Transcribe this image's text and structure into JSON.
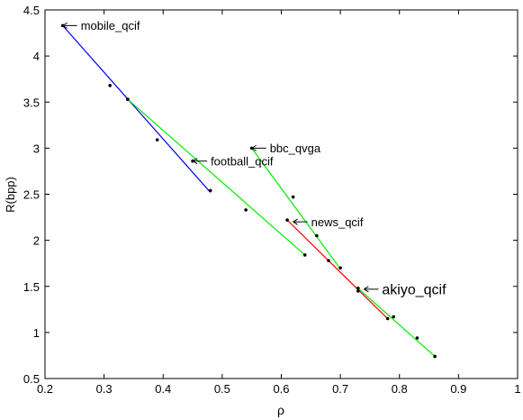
{
  "chart_data": {
    "type": "scatter",
    "title": "",
    "xlabel": "ρ",
    "ylabel": "R(bpp)",
    "xlim": [
      0.2,
      1
    ],
    "ylim": [
      0.5,
      4.5
    ],
    "xticks": [
      0.2,
      0.3,
      0.4,
      0.5,
      0.6,
      0.7,
      0.8,
      0.9,
      1
    ],
    "yticks": [
      0.5,
      1,
      1.5,
      2,
      2.5,
      3,
      3.5,
      4,
      4.5
    ],
    "xtick_labels": [
      "0.2",
      "0.3",
      "0.4",
      "0.5",
      "0.6",
      "0.7",
      "0.8",
      "0.9",
      "1"
    ],
    "ytick_labels": [
      "0.5",
      "1",
      "1.5",
      "2",
      "2.5",
      "3",
      "3.5",
      "4",
      "4.5"
    ],
    "grid": false,
    "series": [
      {
        "color": "#0000ff",
        "points": [
          [
            0.23,
            4.33
          ],
          [
            0.31,
            3.68
          ],
          [
            0.34,
            3.53
          ],
          [
            0.39,
            3.09
          ],
          [
            0.48,
            2.54
          ]
        ],
        "line": [
          [
            0.23,
            4.33
          ],
          [
            0.48,
            2.52
          ]
        ]
      },
      {
        "color": "#00ee00",
        "points": [
          [
            0.34,
            3.53
          ],
          [
            0.45,
            2.86
          ],
          [
            0.54,
            2.33
          ],
          [
            0.64,
            1.84
          ]
        ],
        "line": [
          [
            0.34,
            3.53
          ],
          [
            0.64,
            1.84
          ]
        ]
      },
      {
        "color": "#00ee00",
        "points": [
          [
            0.55,
            3.0
          ],
          [
            0.62,
            2.47
          ],
          [
            0.66,
            2.05
          ],
          [
            0.7,
            1.7
          ]
        ],
        "line": [
          [
            0.55,
            3.0
          ],
          [
            0.7,
            1.69
          ]
        ]
      },
      {
        "color": "#ff0000",
        "points": [
          [
            0.61,
            2.22
          ],
          [
            0.68,
            1.78
          ],
          [
            0.73,
            1.45
          ],
          [
            0.78,
            1.15
          ]
        ],
        "line": [
          [
            0.61,
            2.22
          ],
          [
            0.78,
            1.15
          ]
        ]
      },
      {
        "color": "#00ee00",
        "points": [
          [
            0.73,
            1.48
          ],
          [
            0.79,
            1.17
          ],
          [
            0.83,
            0.94
          ],
          [
            0.86,
            0.74
          ]
        ],
        "line": [
          [
            0.73,
            1.48
          ],
          [
            0.86,
            0.74
          ]
        ]
      }
    ],
    "annotations": [
      {
        "text": "mobile_qcif",
        "x": 0.23,
        "y": 4.33,
        "size": "normal"
      },
      {
        "text": "football_qcif",
        "x": 0.45,
        "y": 2.86,
        "size": "normal"
      },
      {
        "text": "bbc_qvga",
        "x": 0.55,
        "y": 3.0,
        "size": "normal"
      },
      {
        "text": "news_qcif",
        "x": 0.62,
        "y": 2.2,
        "size": "normal"
      },
      {
        "text": "akiyo_qcif",
        "x": 0.74,
        "y": 1.47,
        "size": "large"
      }
    ]
  }
}
